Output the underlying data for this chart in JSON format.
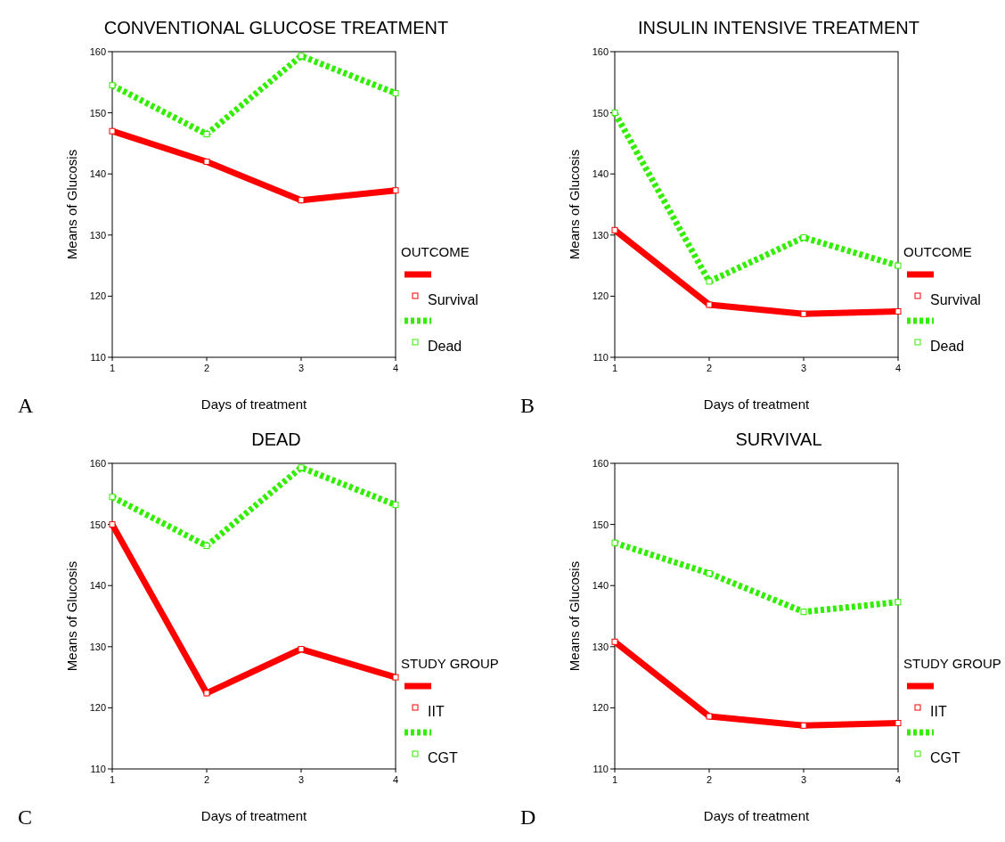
{
  "chart_data": [
    {
      "type": "line",
      "title": "CONVENTIONAL GLUCOSE TREATMENT",
      "xlabel": "Days of treatment",
      "ylabel": "Means of Glucosis",
      "legend_title": "OUTCOME",
      "annotations": [
        "A"
      ],
      "x": [
        1,
        2,
        3,
        4
      ],
      "xlim": [
        1,
        4
      ],
      "xticks": [
        1,
        2,
        3,
        4
      ],
      "ylim": [
        110,
        160
      ],
      "yticks": [
        110,
        120,
        130,
        140,
        150,
        160
      ],
      "legend": "right",
      "marker": "square",
      "series": [
        {
          "name": "Survival",
          "color": "#ff0000",
          "line_style": "solid",
          "values": [
            147,
            142,
            135.7,
            137.3
          ]
        },
        {
          "name": "Dead",
          "color": "#33ee00",
          "line_style": "dotted",
          "values": [
            154.5,
            146.5,
            159.3,
            153.2
          ]
        }
      ]
    },
    {
      "type": "line",
      "title": "INSULIN INTENSIVE TREATMENT",
      "xlabel": "Days of treatment",
      "ylabel": "Means of Glucosis",
      "legend_title": "OUTCOME",
      "annotations": [
        "B"
      ],
      "x": [
        1,
        2,
        3,
        4
      ],
      "xlim": [
        1,
        4
      ],
      "xticks": [
        1,
        2,
        3,
        4
      ],
      "ylim": [
        110,
        160
      ],
      "yticks": [
        110,
        120,
        130,
        140,
        150,
        160
      ],
      "legend": "right",
      "marker": "square",
      "series": [
        {
          "name": "Survival",
          "color": "#ff0000",
          "line_style": "solid",
          "values": [
            130.8,
            118.6,
            117.1,
            117.5
          ]
        },
        {
          "name": "Dead",
          "color": "#33ee00",
          "line_style": "dotted",
          "values": [
            150,
            122.4,
            129.6,
            125
          ]
        }
      ]
    },
    {
      "type": "line",
      "title": "DEAD",
      "xlabel": "Days of treatment",
      "ylabel": "Means of Glucosis",
      "legend_title": "STUDY GROUP",
      "annotations": [
        "C"
      ],
      "x": [
        1,
        2,
        3,
        4
      ],
      "xlim": [
        1,
        4
      ],
      "xticks": [
        1,
        2,
        3,
        4
      ],
      "ylim": [
        110,
        160
      ],
      "yticks": [
        110,
        120,
        130,
        140,
        150,
        160
      ],
      "legend": "right",
      "marker": "square",
      "series": [
        {
          "name": "IIT",
          "color": "#ff0000",
          "line_style": "solid",
          "values": [
            150,
            122.4,
            129.6,
            125
          ]
        },
        {
          "name": "CGT",
          "color": "#33ee00",
          "line_style": "dotted",
          "values": [
            154.5,
            146.5,
            159.3,
            153.2
          ]
        }
      ]
    },
    {
      "type": "line",
      "title": "SURVIVAL",
      "xlabel": "Days of treatment",
      "ylabel": "Means of Glucosis",
      "legend_title": "STUDY GROUP",
      "annotations": [
        "D"
      ],
      "x": [
        1,
        2,
        3,
        4
      ],
      "xlim": [
        1,
        4
      ],
      "xticks": [
        1,
        2,
        3,
        4
      ],
      "ylim": [
        110,
        160
      ],
      "yticks": [
        110,
        120,
        130,
        140,
        150,
        160
      ],
      "legend": "right",
      "marker": "square",
      "series": [
        {
          "name": "IIT",
          "color": "#ff0000",
          "line_style": "solid",
          "values": [
            130.8,
            118.6,
            117.1,
            117.5
          ]
        },
        {
          "name": "CGT",
          "color": "#33ee00",
          "line_style": "dotted",
          "values": [
            147,
            142,
            135.7,
            137.3
          ]
        }
      ]
    }
  ]
}
